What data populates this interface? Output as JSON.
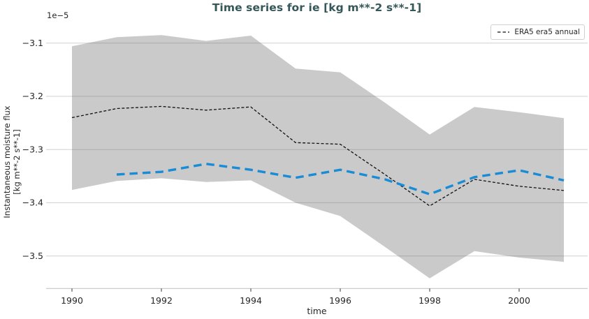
{
  "figure": {
    "title": "Time series for ie [kg m**-2 s**-1]",
    "y_offset_label": "1e−5",
    "ylabel_line1": "Instantaneous moisture flux",
    "ylabel_line2": "[kg m**-2 s**-1]",
    "xlabel": "time"
  },
  "legend": {
    "position": "upper right",
    "entries": [
      {
        "label": "ERA5 era5 annual",
        "marker": "dashed-line",
        "color": "#111111"
      }
    ]
  },
  "chart_data": {
    "type": "line",
    "title": "Time series for ie [kg m**-2 s**-1]",
    "xlabel": "time",
    "ylabel": "Instantaneous moisture flux [kg m**-2 s**-1]",
    "y_offset_label": "1e−5",
    "y_value_scale": 1e-05,
    "x_ticks": [
      1990,
      1992,
      1994,
      1996,
      1998,
      2000
    ],
    "y_ticks": [
      -3.1,
      -3.2,
      -3.3,
      -3.4,
      -3.5
    ],
    "xlim": [
      1989.4,
      2001.55
    ],
    "ylim": [
      -3.56,
      -3.07
    ],
    "grid": "horizontal-only",
    "legend_position": "upper right",
    "series": [
      {
        "name": "ERA5 era5 annual",
        "color": "#111111",
        "line_style": "dashed",
        "line_width": "thin",
        "in_legend": true,
        "x": [
          1990,
          1991,
          1992,
          1993,
          1994,
          1995,
          1996,
          1997,
          1998,
          1999,
          2000,
          2001
        ],
        "values": [
          -3.24,
          -3.223,
          -3.219,
          -3.226,
          -3.22,
          -3.287,
          -3.29,
          -3.347,
          -3.406,
          -3.356,
          -3.369,
          -3.377
        ]
      },
      {
        "name": "unlabeled blue dashed series",
        "color": "#1a8cd6",
        "line_style": "dashed",
        "line_width": "thick",
        "in_legend": false,
        "x": [
          1991,
          1992,
          1993,
          1994,
          1995,
          1996,
          1997,
          1998,
          1999,
          2000,
          2001
        ],
        "values": [
          -3.347,
          -3.342,
          -3.327,
          -3.338,
          -3.353,
          -3.338,
          -3.356,
          -3.384,
          -3.352,
          -3.339,
          -3.358
        ]
      }
    ],
    "band": {
      "name": "shaded uncertainty band",
      "color": "#969696",
      "opacity": 0.5,
      "x": [
        1990,
        1991,
        1992,
        1993,
        1994,
        1995,
        1996,
        1997,
        1998,
        1999,
        2000,
        2001
      ],
      "upper": [
        -3.106,
        -3.089,
        -3.085,
        -3.096,
        -3.086,
        -3.148,
        -3.155,
        -3.212,
        -3.272,
        -3.22,
        -3.23,
        -3.241
      ],
      "lower": [
        -3.376,
        -3.359,
        -3.354,
        -3.361,
        -3.358,
        -3.4,
        -3.425,
        -3.483,
        -3.542,
        -3.491,
        -3.503,
        -3.511
      ]
    }
  },
  "colors": {
    "title": "#355759",
    "text": "#262626",
    "grid": "#c9c9c9",
    "spine": "#c6c6c6",
    "background": "#ffffff",
    "era5_line": "#111111",
    "blue_line": "#1a8cd6",
    "band_fill": "#cbcbcb"
  }
}
